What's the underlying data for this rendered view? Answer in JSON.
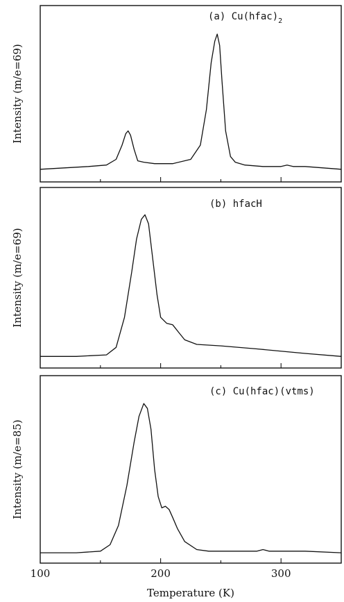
{
  "chart_data": [
    {
      "type": "line",
      "panel_label": "(a) Cu(hfac)",
      "panel_label_subscript": "2",
      "ylabel": "Intensity (m/e=69)",
      "xlim": [
        100,
        350
      ],
      "ylim": [
        0,
        1
      ],
      "series": [
        {
          "x": [
            100,
            120,
            140,
            155,
            163,
            168,
            171,
            173,
            175,
            178,
            181,
            186,
            195,
            210,
            225,
            233,
            238,
            242,
            245,
            247,
            249,
            251,
            254,
            258,
            262,
            270,
            285,
            300,
            305,
            310,
            320,
            335,
            350
          ],
          "y": [
            0.03,
            0.04,
            0.05,
            0.06,
            0.1,
            0.2,
            0.28,
            0.3,
            0.27,
            0.17,
            0.09,
            0.08,
            0.07,
            0.07,
            0.1,
            0.2,
            0.45,
            0.78,
            0.93,
            0.98,
            0.9,
            0.65,
            0.3,
            0.12,
            0.08,
            0.06,
            0.05,
            0.05,
            0.06,
            0.05,
            0.05,
            0.04,
            0.03
          ]
        }
      ]
    },
    {
      "type": "line",
      "panel_label": "(b) hfacH",
      "ylabel": "Intensity (m/e=69)",
      "xlim": [
        100,
        350
      ],
      "ylim": [
        0,
        1
      ],
      "series": [
        {
          "x": [
            100,
            130,
            155,
            163,
            170,
            176,
            180,
            184,
            187,
            190,
            193,
            197,
            200,
            205,
            210,
            215,
            220,
            230,
            250,
            280,
            320,
            350
          ],
          "y": [
            0.04,
            0.04,
            0.05,
            0.1,
            0.3,
            0.6,
            0.82,
            0.95,
            0.98,
            0.92,
            0.72,
            0.45,
            0.3,
            0.26,
            0.25,
            0.2,
            0.15,
            0.12,
            0.11,
            0.09,
            0.06,
            0.04
          ]
        }
      ]
    },
    {
      "type": "line",
      "panel_label": "(c) Cu(hfac)(vtms)",
      "ylabel": "Intensity (m/e=85)",
      "xlim": [
        100,
        350
      ],
      "ylim": [
        0,
        1
      ],
      "series": [
        {
          "x": [
            100,
            130,
            150,
            158,
            165,
            172,
            178,
            182,
            186,
            189,
            192,
            195,
            198,
            201,
            204,
            207,
            210,
            214,
            220,
            230,
            240,
            260,
            280,
            285,
            290,
            320,
            350
          ],
          "y": [
            0.03,
            0.03,
            0.04,
            0.08,
            0.2,
            0.45,
            0.72,
            0.88,
            0.96,
            0.93,
            0.8,
            0.55,
            0.38,
            0.31,
            0.32,
            0.3,
            0.25,
            0.18,
            0.1,
            0.05,
            0.04,
            0.04,
            0.04,
            0.05,
            0.04,
            0.04,
            0.03
          ]
        }
      ]
    }
  ],
  "x_axis": {
    "label": "Temperature (K)",
    "ticks": [
      100,
      200,
      300
    ],
    "tick_labels": [
      "100",
      "200",
      "300"
    ]
  }
}
